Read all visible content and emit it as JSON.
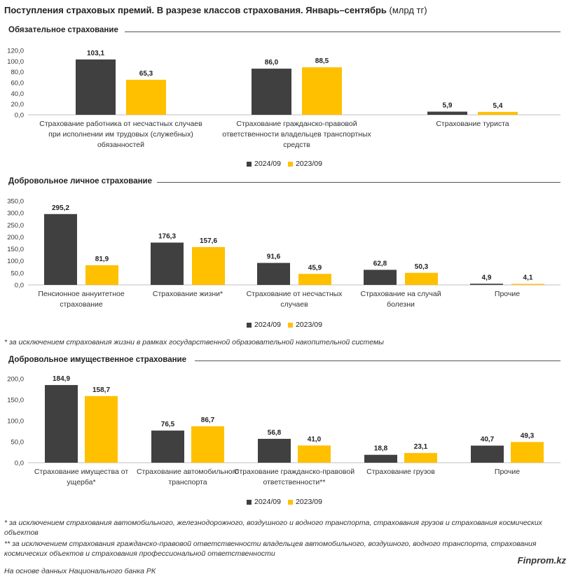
{
  "title": {
    "bold": "Поступления страховых премий. В разрезе классов страхования. Январь–сентябрь",
    "unit": "(млрд тг)"
  },
  "colors": {
    "series_2024": "#404040",
    "series_2023": "#FFC000"
  },
  "chart_data": [
    {
      "type": "bar",
      "title": "Обязательное страхование",
      "categories": [
        "Страхование работника от несчастных случаев при исполнении им трудовых (служебных) обязанностей",
        "Страхование гражданско-правовой ответственности владельцев транспортных средств",
        "Страхование туриста"
      ],
      "series": [
        {
          "name": "2024/09",
          "values": [
            103.1,
            86.0,
            5.9
          ]
        },
        {
          "name": "2023/09",
          "values": [
            65.3,
            88.5,
            5.4
          ]
        }
      ],
      "ylim": [
        0,
        120
      ],
      "yticks": [
        "120,0",
        "100,0",
        "80,0",
        "60,0",
        "40,0",
        "20,0",
        "0,0"
      ],
      "legend": "bottom-center",
      "grid": false
    },
    {
      "type": "bar",
      "title": "Добровольное личное страхование",
      "categories": [
        "Пенсионное аннуитетное страхование",
        "Страхование жизни*",
        "Страхование от несчастных случаев",
        "Страхование на случай болезни",
        "Прочие"
      ],
      "series": [
        {
          "name": "2024/09",
          "values": [
            295.2,
            176.3,
            91.6,
            62.8,
            4.9
          ]
        },
        {
          "name": "2023/09",
          "values": [
            81.9,
            157.6,
            45.9,
            50.3,
            4.1
          ]
        }
      ],
      "ylim": [
        0,
        350
      ],
      "yticks": [
        "350,0",
        "300,0",
        "250,0",
        "200,0",
        "150,0",
        "100,0",
        "50,0",
        "0,0"
      ],
      "legend": "bottom-center",
      "grid": false
    },
    {
      "type": "bar",
      "title": "Добровольное имущественное страхование",
      "categories": [
        "Страхование имущества от ущерба*",
        "Страхование автомобильного транспорта",
        "Страхование гражданско-правовой ответственности**",
        "Страхование грузов",
        "Прочие"
      ],
      "series": [
        {
          "name": "2024/09",
          "values": [
            184.9,
            76.5,
            56.8,
            18.8,
            40.7
          ]
        },
        {
          "name": "2023/09",
          "values": [
            158.7,
            86.7,
            41.0,
            23.1,
            49.3
          ]
        }
      ],
      "ylim": [
        0,
        200
      ],
      "yticks": [
        "200,0",
        "150,0",
        "100,0",
        "50,0",
        "0,0"
      ],
      "legend": "bottom-center",
      "grid": false
    }
  ],
  "notes": {
    "personal": "* за исключением страхования жизни в рамках государственной образовательной накопительной системы",
    "property_1": "* за исключением страхования автомобильного, железнодорожного, воздушного и водного транспорта, страхования грузов и страхования космических объектов",
    "property_2": "** за исключением страхования гражданско-правовой ответственности владельцев автомобильного, воздушного, водного транспорта, страхования космических объектов и страхования профессиональной ответственности"
  },
  "source": "На основе данных Национального банка РК",
  "brand": "Finprom.kz"
}
